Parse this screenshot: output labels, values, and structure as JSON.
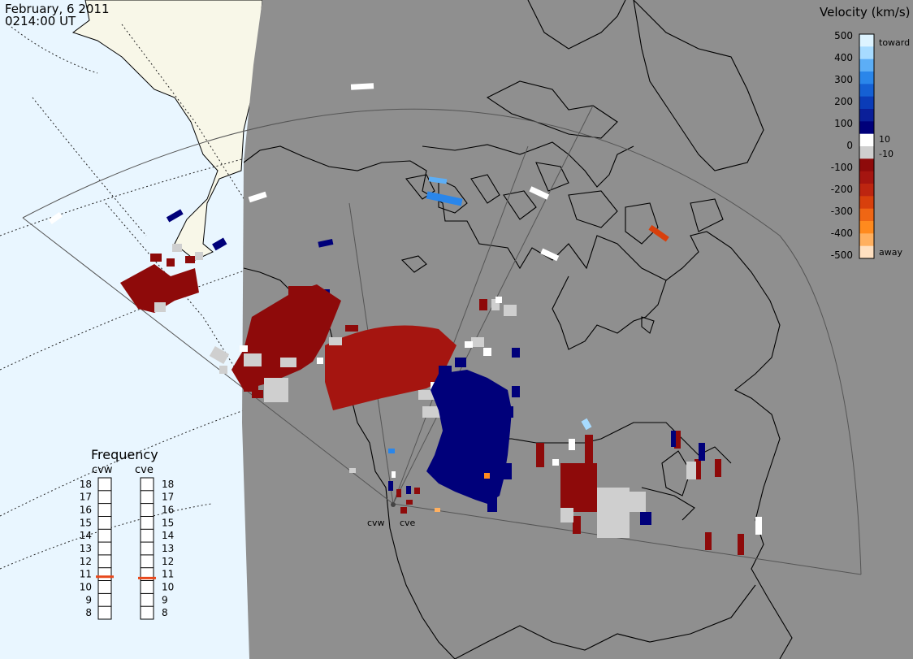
{
  "header": {
    "date": "February, 6 2011",
    "time": "0214:00 UT"
  },
  "legend": {
    "title": "Velocity (km/s)",
    "toward_label": "toward",
    "away_label": "away",
    "ticks": [
      "500",
      "400",
      "300",
      "200",
      "100",
      "0",
      "-100",
      "-200",
      "-300",
      "-400",
      "-500"
    ],
    "inner_plus": "10",
    "inner_minus": "-10",
    "colors": [
      "#ffe0c0",
      "#ffb060",
      "#ff8a1e",
      "#ef6614",
      "#d8400c",
      "#bd2510",
      "#a51510",
      "#8e0a0a",
      "#cfcfcf",
      "#ffffff",
      "#00007a",
      "#0a1f99",
      "#0b3cb8",
      "#1560d4",
      "#2a86ea",
      "#5caef6",
      "#a7dbff",
      "#ddf3ff"
    ]
  },
  "frequency": {
    "title": "Frequency",
    "radar_labels": [
      "cvw",
      "cve"
    ],
    "ticks": [
      "18",
      "17",
      "16",
      "15",
      "14",
      "13",
      "12",
      "11",
      "10",
      "9",
      "8"
    ],
    "cvw_value": 10.8,
    "cve_value": 10.7,
    "indicator_color": "#e8481c"
  },
  "site_labels": [
    "cvw",
    "cve"
  ],
  "colors": {
    "ocean": "#e9f6ff",
    "land_light": "#f8f7e8",
    "night_gray": "#8f8f8f",
    "coast": "#000000",
    "fov": "#555555"
  }
}
